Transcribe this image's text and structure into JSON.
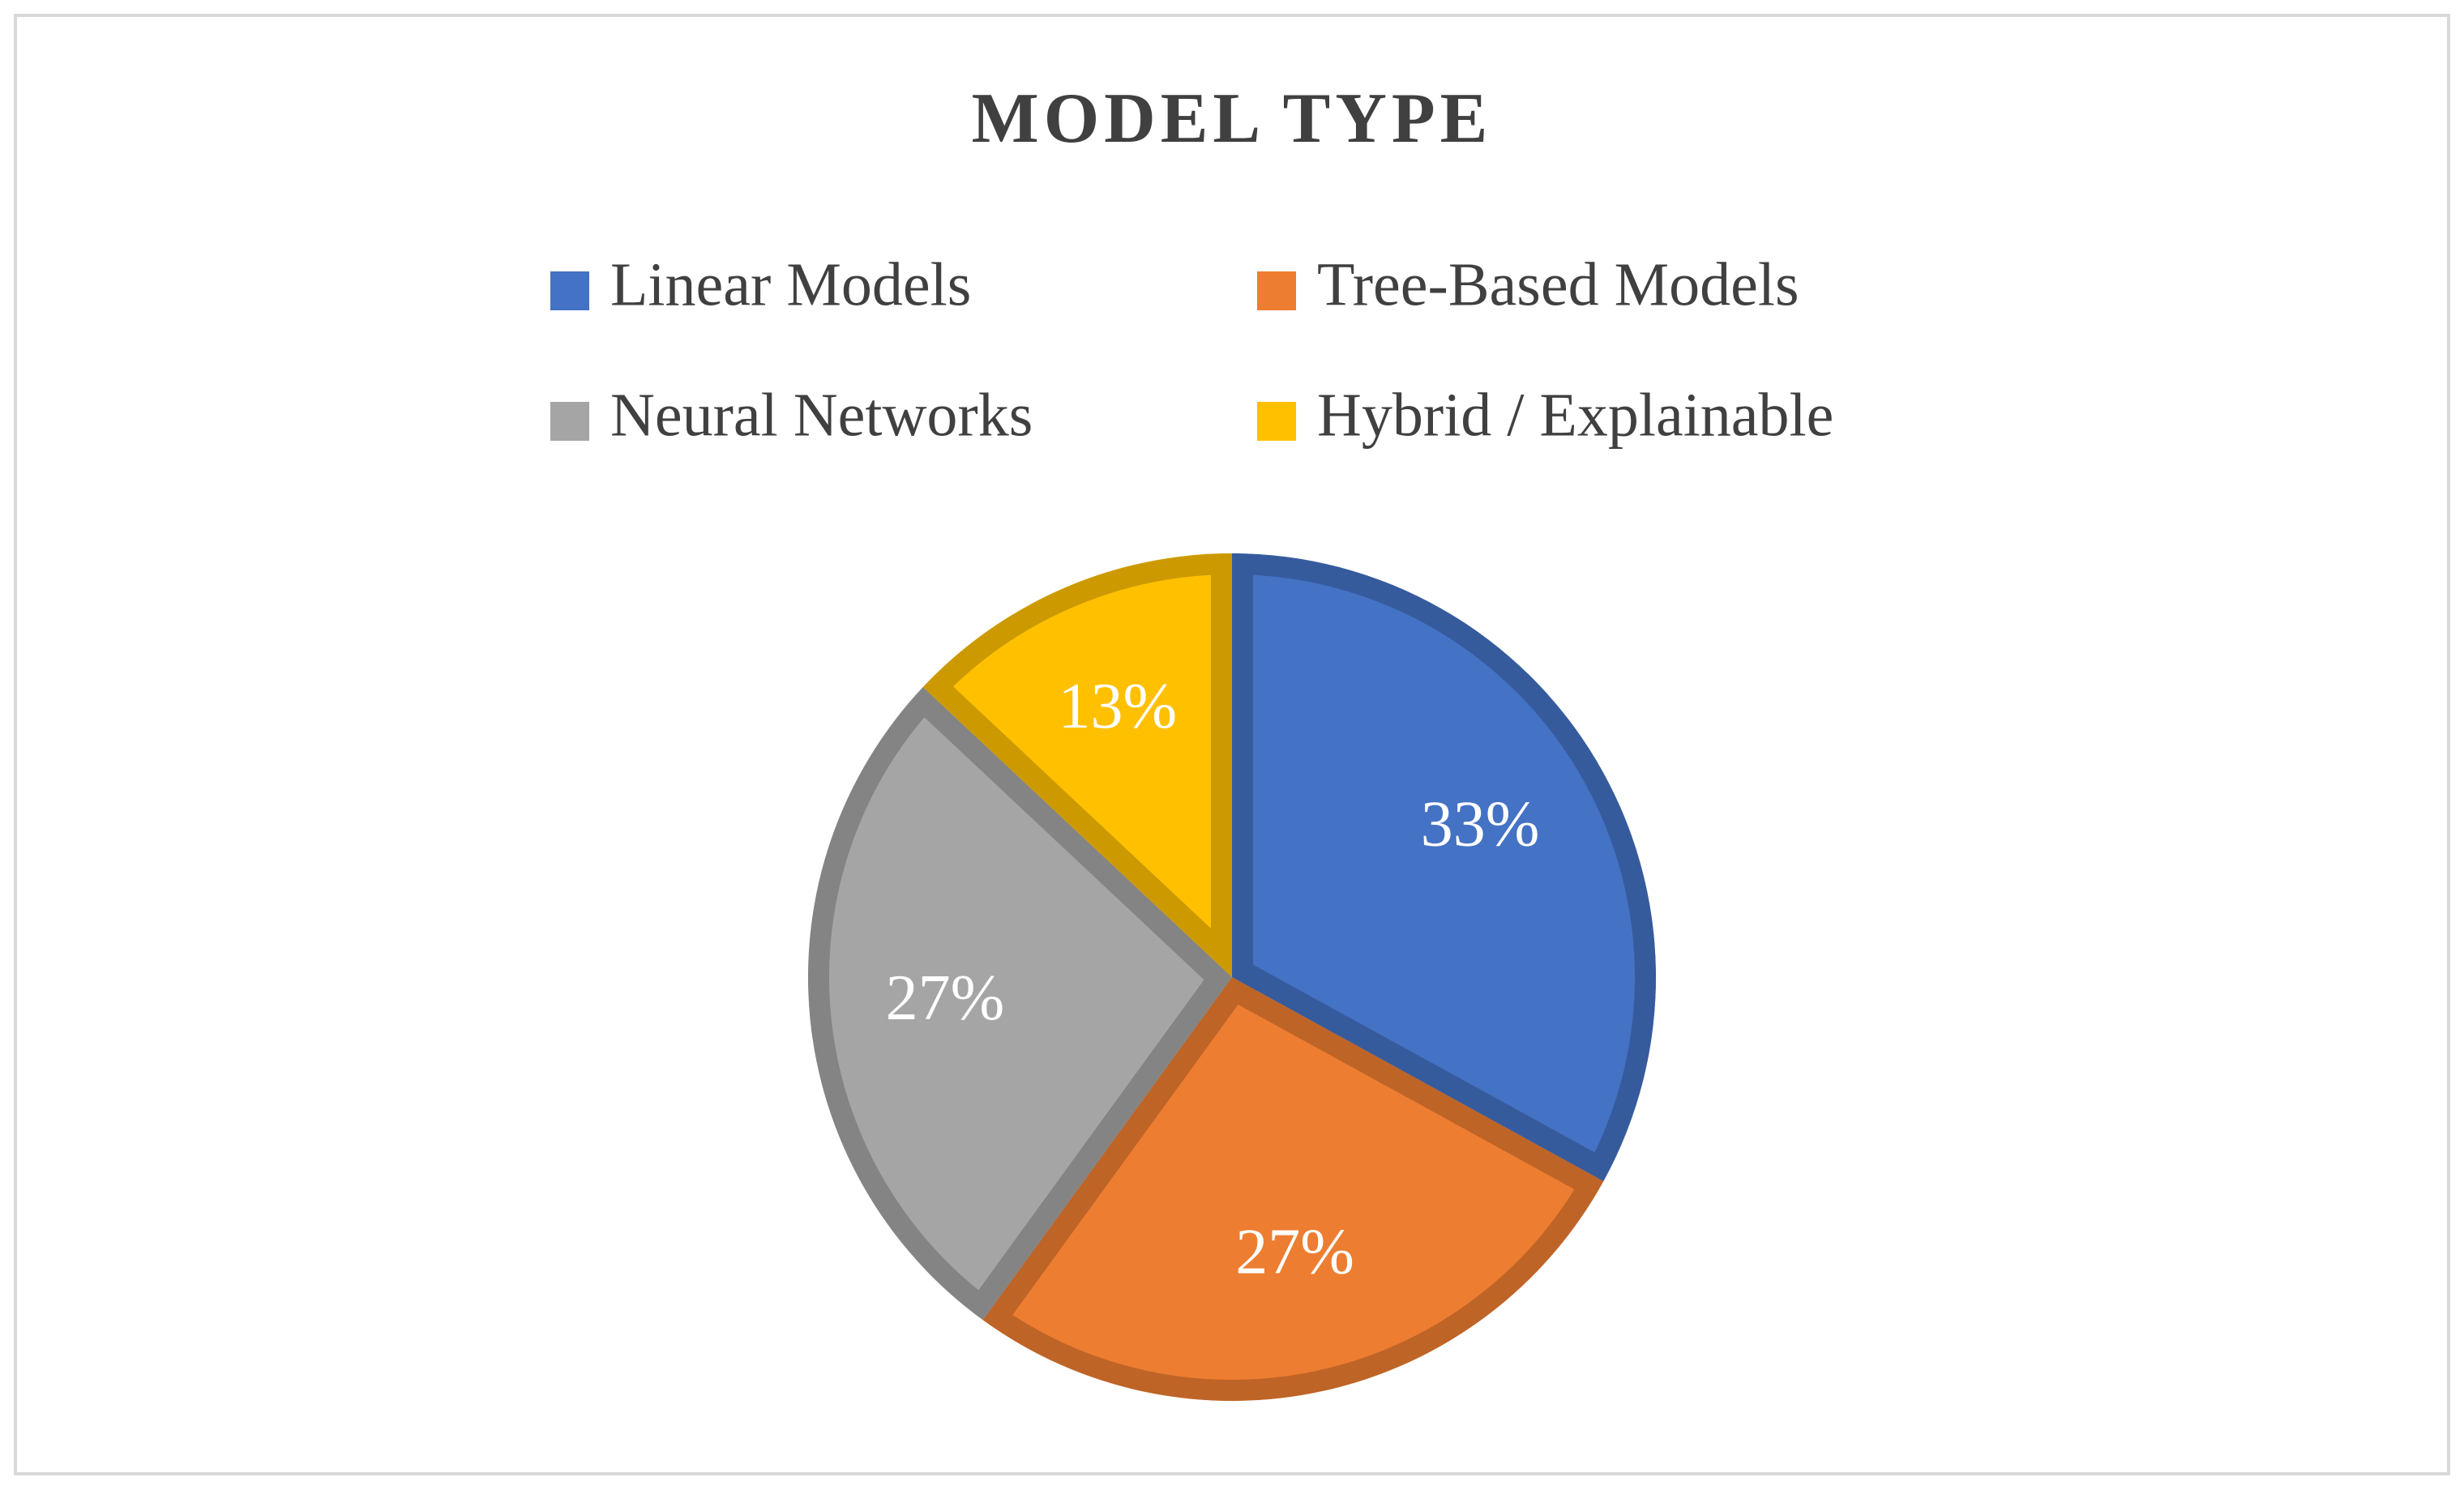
{
  "chart_data": {
    "type": "pie",
    "title": "MODEL TYPE",
    "categories": [
      "Linear Models",
      "Tree-Based Models",
      "Neural Networks",
      "Hybrid / Explainable"
    ],
    "values": [
      33,
      27,
      27,
      13
    ],
    "value_labels": [
      "33%",
      "27%",
      "27%",
      "13%"
    ],
    "colors": [
      "#4472c4",
      "#ed7d31",
      "#a5a5a5",
      "#ffc000"
    ],
    "legend": "top"
  }
}
